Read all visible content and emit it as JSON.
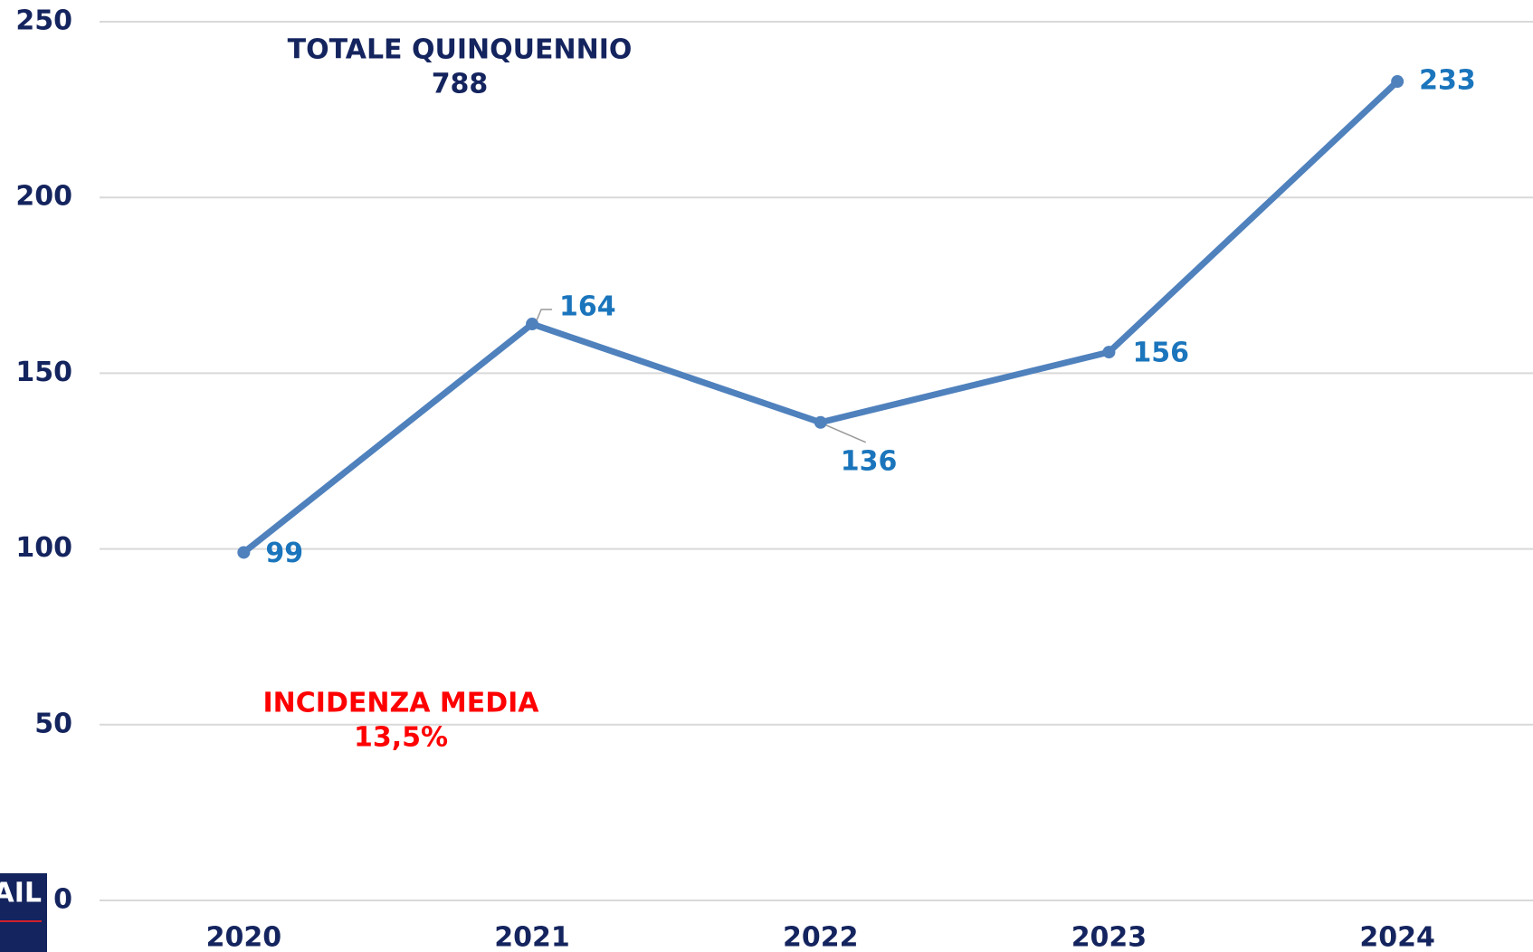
{
  "chart_data": {
    "type": "line",
    "categories": [
      "2020",
      "2021",
      "2022",
      "2023",
      "2024"
    ],
    "series": [
      {
        "name": null,
        "color": "#4f81bd",
        "values": [
          99,
          164,
          136,
          156,
          233
        ]
      }
    ],
    "ylim": [
      0,
      250
    ],
    "yticks": [
      0,
      50,
      100,
      150,
      200,
      250
    ],
    "grid": true,
    "annotations": [
      {
        "text": "TOTALE QUINQUENNIO",
        "value": "788",
        "color": "#14245e"
      },
      {
        "text": "INCIDENZA MEDIA",
        "value": "13,5%",
        "color": "#ff0000"
      }
    ],
    "label_color": "#1a75bc",
    "axis_color": "#14245e"
  },
  "logo": "AIL"
}
